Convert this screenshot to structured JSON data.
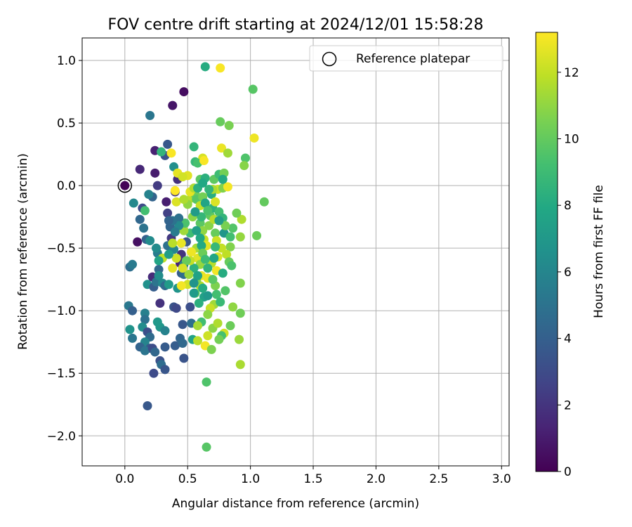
{
  "chart_data": {
    "type": "scatter",
    "title": "FOV centre drift starting at 2024/12/01 15:58:28",
    "xlabel": "Angular distance from reference (arcmin)",
    "ylabel": "Rotation from reference (arcmin)",
    "xlim": [
      -0.34,
      3.06
    ],
    "ylim": [
      -2.24,
      1.18
    ],
    "x_ticks": [
      0.0,
      0.5,
      1.0,
      1.5,
      2.0,
      2.5,
      3.0
    ],
    "x_tick_labels": [
      "0.0",
      "0.5",
      "1.0",
      "1.5",
      "2.0",
      "2.5",
      "3.0"
    ],
    "y_ticks": [
      1.0,
      0.5,
      0.0,
      -0.5,
      -1.0,
      -1.5,
      -2.0
    ],
    "y_tick_labels": [
      "1.0",
      "0.5",
      "0.0",
      "−0.5",
      "−1.0",
      "−1.5",
      "−2.0"
    ],
    "grid": true,
    "legend": {
      "placement": "top-right",
      "entries": [
        "Reference platepar"
      ]
    },
    "reference_point": {
      "x": 0.0,
      "y": 0.0,
      "label": "Reference platepar"
    },
    "colorbar": {
      "label": "Hours from first FF file",
      "colormap": "viridis",
      "range": [
        0,
        13.2
      ],
      "ticks": [
        0,
        2,
        4,
        6,
        8,
        10,
        12
      ],
      "tick_labels": [
        "0",
        "2",
        "4",
        "6",
        "8",
        "10",
        "12"
      ]
    },
    "points": [
      [
        0.0,
        0.0,
        0.1
      ],
      [
        0.47,
        0.75,
        0.5
      ],
      [
        0.38,
        0.64,
        0.8
      ],
      [
        0.12,
        0.13,
        1.5
      ],
      [
        0.24,
        0.28,
        1.2
      ],
      [
        0.24,
        0.1,
        1.0
      ],
      [
        0.1,
        -0.45,
        0.6
      ],
      [
        0.26,
        0.0,
        2.3
      ],
      [
        0.33,
        -0.13,
        1.1
      ],
      [
        0.22,
        -0.73,
        1.6
      ],
      [
        0.28,
        -0.94,
        1.9
      ],
      [
        0.44,
        -0.62,
        1.3
      ],
      [
        0.45,
        -0.55,
        2.0
      ],
      [
        0.37,
        -0.42,
        2.2
      ],
      [
        0.42,
        0.05,
        1.8
      ],
      [
        0.4,
        -0.05,
        2.1
      ],
      [
        0.34,
        -0.22,
        2.5
      ],
      [
        0.2,
        0.56,
        5.2
      ],
      [
        0.34,
        0.33,
        3.6
      ],
      [
        0.32,
        0.24,
        3.3
      ],
      [
        0.39,
        0.15,
        6.5
      ],
      [
        0.14,
        -0.18,
        3.0
      ],
      [
        0.22,
        -0.09,
        4.2
      ],
      [
        0.19,
        -0.07,
        5.8
      ],
      [
        0.12,
        -0.27,
        4.4
      ],
      [
        0.07,
        -0.14,
        6.1
      ],
      [
        0.04,
        -0.65,
        4.8
      ],
      [
        0.06,
        -0.63,
        5.4
      ],
      [
        0.17,
        -0.43,
        4.1
      ],
      [
        0.15,
        -0.34,
        5.0
      ],
      [
        0.2,
        -0.44,
        6.3
      ],
      [
        0.26,
        -0.54,
        5.5
      ],
      [
        0.27,
        -0.67,
        4.5
      ],
      [
        0.18,
        -0.79,
        6.6
      ],
      [
        0.23,
        -0.81,
        3.9
      ],
      [
        0.25,
        -0.77,
        5.1
      ],
      [
        0.3,
        -0.78,
        6.2
      ],
      [
        0.32,
        -0.8,
        4.6
      ],
      [
        0.34,
        -0.48,
        4.9
      ],
      [
        0.36,
        -0.33,
        4.3
      ],
      [
        0.39,
        -0.51,
        6.0
      ],
      [
        0.35,
        -0.79,
        7.2
      ],
      [
        0.39,
        -0.97,
        3.4
      ],
      [
        0.45,
        -0.7,
        3.8
      ],
      [
        0.42,
        -0.82,
        6.8
      ],
      [
        0.47,
        -0.63,
        5.6
      ],
      [
        0.47,
        -0.71,
        4.7
      ],
      [
        0.49,
        -0.45,
        3.5
      ],
      [
        0.03,
        -0.96,
        5.3
      ],
      [
        0.06,
        -1.0,
        4.0
      ],
      [
        0.16,
        -1.02,
        5.7
      ],
      [
        0.16,
        -1.07,
        4.9
      ],
      [
        0.14,
        -1.13,
        6.4
      ],
      [
        0.18,
        -1.17,
        3.2
      ],
      [
        0.2,
        -1.21,
        4.6
      ],
      [
        0.16,
        -1.25,
        5.9
      ],
      [
        0.2,
        -1.3,
        3.7
      ],
      [
        0.12,
        -1.29,
        4.2
      ],
      [
        0.06,
        -1.22,
        5.2
      ],
      [
        0.04,
        -1.15,
        6.7
      ],
      [
        0.16,
        -1.32,
        5.1
      ],
      [
        0.22,
        -1.3,
        3.1
      ],
      [
        0.24,
        -1.33,
        4.4
      ],
      [
        0.28,
        -1.13,
        6.9
      ],
      [
        0.26,
        -1.09,
        7.0
      ],
      [
        0.32,
        -1.16,
        5.8
      ],
      [
        0.32,
        -1.29,
        3.8
      ],
      [
        0.28,
        -1.4,
        3.3
      ],
      [
        0.29,
        -1.43,
        4.7
      ],
      [
        0.32,
        -1.47,
        3.5
      ],
      [
        0.23,
        -1.5,
        3.0
      ],
      [
        0.18,
        -1.76,
        3.6
      ],
      [
        0.4,
        -1.28,
        3.9
      ],
      [
        0.44,
        -1.22,
        4.3
      ],
      [
        0.46,
        -1.11,
        3.6
      ],
      [
        0.41,
        -0.98,
        2.9
      ],
      [
        0.47,
        -1.38,
        3.4
      ],
      [
        0.46,
        -1.26,
        4.5
      ],
      [
        0.52,
        -0.97,
        3.2
      ],
      [
        0.53,
        -1.1,
        4.8
      ],
      [
        0.54,
        -1.23,
        7.6
      ],
      [
        0.38,
        -0.66,
        12.7
      ],
      [
        0.43,
        -0.29,
        11.4
      ],
      [
        0.52,
        -0.38,
        9.1
      ],
      [
        0.5,
        -0.79,
        12.3
      ],
      [
        0.45,
        -0.8,
        13.0
      ],
      [
        0.54,
        -0.25,
        10.9
      ],
      [
        0.53,
        -0.1,
        11.8
      ],
      [
        0.5,
        0.08,
        12.6
      ],
      [
        0.56,
        -0.07,
        10.2
      ],
      [
        0.6,
        0.05,
        9.8
      ],
      [
        0.62,
        0.22,
        12.4
      ],
      [
        0.56,
        0.19,
        8.8
      ],
      [
        0.58,
        0.18,
        9.3
      ],
      [
        0.55,
        0.31,
        8.6
      ],
      [
        0.63,
        0.2,
        13.1
      ],
      [
        0.64,
        0.06,
        8.3
      ],
      [
        0.68,
        -0.05,
        10.6
      ],
      [
        0.71,
        0.05,
        9.9
      ],
      [
        0.75,
        0.09,
        9.0
      ],
      [
        0.79,
        0.1,
        10.4
      ],
      [
        0.74,
        -0.03,
        12.2
      ],
      [
        0.78,
        -0.02,
        10.7
      ],
      [
        0.82,
        -0.01,
        13.0
      ],
      [
        0.77,
        0.3,
        12.8
      ],
      [
        0.82,
        0.26,
        11.3
      ],
      [
        0.76,
        0.51,
        10.1
      ],
      [
        0.83,
        0.48,
        10.5
      ],
      [
        0.64,
        0.95,
        8.1
      ],
      [
        0.76,
        0.94,
        13.1
      ],
      [
        1.02,
        0.77,
        9.7
      ],
      [
        1.03,
        0.38,
        12.9
      ],
      [
        0.96,
        0.22,
        9.5
      ],
      [
        0.95,
        0.16,
        10.8
      ],
      [
        1.11,
        -0.13,
        10.0
      ],
      [
        1.05,
        -0.4,
        10.2
      ],
      [
        0.92,
        -0.41,
        11.1
      ],
      [
        0.93,
        -0.27,
        11.6
      ],
      [
        0.89,
        -0.22,
        10.3
      ],
      [
        0.86,
        -0.34,
        9.6
      ],
      [
        0.84,
        -0.49,
        10.7
      ],
      [
        0.81,
        -0.55,
        11.9
      ],
      [
        0.83,
        -0.61,
        10.1
      ],
      [
        0.85,
        -0.64,
        9.4
      ],
      [
        0.77,
        -0.5,
        12.0
      ],
      [
        0.74,
        -0.57,
        12.5
      ],
      [
        0.73,
        -0.68,
        13.0
      ],
      [
        0.69,
        -0.62,
        11.7
      ],
      [
        0.66,
        -0.74,
        12.9
      ],
      [
        0.72,
        -0.8,
        10.6
      ],
      [
        0.73,
        -0.87,
        9.2
      ],
      [
        0.71,
        -0.95,
        11.3
      ],
      [
        0.76,
        -0.93,
        8.9
      ],
      [
        0.68,
        -0.98,
        12.1
      ],
      [
        0.66,
        -1.03,
        10.9
      ],
      [
        0.61,
        -1.09,
        9.1
      ],
      [
        0.58,
        -1.12,
        11.4
      ],
      [
        0.58,
        -1.24,
        11.8
      ],
      [
        0.64,
        -1.28,
        13.0
      ],
      [
        0.66,
        -1.2,
        12.2
      ],
      [
        0.69,
        -1.31,
        10.6
      ],
      [
        0.7,
        -1.14,
        10.9
      ],
      [
        0.74,
        -1.1,
        11.6
      ],
      [
        0.79,
        -1.18,
        12.3
      ],
      [
        0.77,
        -1.2,
        9.3
      ],
      [
        0.75,
        -1.23,
        10.4
      ],
      [
        0.84,
        -1.12,
        10.2
      ],
      [
        0.86,
        -0.97,
        11.0
      ],
      [
        0.92,
        -1.02,
        10.3
      ],
      [
        0.91,
        -1.23,
        11.2
      ],
      [
        0.92,
        -1.43,
        11.5
      ],
      [
        0.92,
        -0.78,
        10.7
      ],
      [
        0.65,
        -1.57,
        9.5
      ],
      [
        0.65,
        -2.09,
        9.7
      ],
      [
        0.6,
        -0.3,
        9.8
      ],
      [
        0.61,
        -0.25,
        8.7
      ],
      [
        0.62,
        -0.36,
        11.0
      ],
      [
        0.63,
        -0.43,
        12.1
      ],
      [
        0.65,
        -0.48,
        12.7
      ],
      [
        0.67,
        -0.32,
        10.8
      ],
      [
        0.68,
        -0.24,
        9.9
      ],
      [
        0.7,
        -0.18,
        8.5
      ],
      [
        0.71,
        -0.27,
        11.7
      ],
      [
        0.72,
        -0.38,
        10.1
      ],
      [
        0.73,
        -0.44,
        12.2
      ],
      [
        0.75,
        -0.21,
        9.2
      ],
      [
        0.78,
        -0.26,
        8.6
      ],
      [
        0.79,
        -0.38,
        6.9
      ],
      [
        0.8,
        -0.32,
        10.5
      ],
      [
        0.57,
        -0.5,
        11.4
      ],
      [
        0.58,
        -0.58,
        12.6
      ],
      [
        0.6,
        -0.63,
        11.1
      ],
      [
        0.61,
        -0.72,
        12.8
      ],
      [
        0.6,
        -0.8,
        11.7
      ],
      [
        0.56,
        -0.86,
        9.9
      ],
      [
        0.57,
        -0.76,
        10.7
      ],
      [
        0.55,
        -0.66,
        8.4
      ],
      [
        0.53,
        -0.53,
        12.9
      ],
      [
        0.52,
        -0.6,
        12.0
      ],
      [
        0.51,
        -0.71,
        11.2
      ],
      [
        0.49,
        -0.6,
        10.1
      ],
      [
        0.46,
        -0.66,
        12.4
      ],
      [
        0.45,
        -0.46,
        12.8
      ],
      [
        0.47,
        -0.36,
        11.3
      ],
      [
        0.48,
        -0.3,
        9.4
      ],
      [
        0.5,
        -0.15,
        11.0
      ],
      [
        0.52,
        -0.05,
        12.7
      ],
      [
        0.55,
        -0.02,
        11.6
      ],
      [
        0.57,
        -0.11,
        9.7
      ],
      [
        0.6,
        -0.16,
        12.0
      ],
      [
        0.62,
        -0.09,
        10.4
      ],
      [
        0.64,
        -0.14,
        7.7
      ],
      [
        0.66,
        -0.2,
        9.4
      ],
      [
        0.69,
        -0.07,
        8.2
      ],
      [
        0.7,
        -0.03,
        11.5
      ],
      [
        0.72,
        -0.13,
        12.5
      ],
      [
        0.6,
        -0.42,
        7.9
      ],
      [
        0.61,
        -0.48,
        8.0
      ],
      [
        0.62,
        -0.54,
        10.2
      ],
      [
        0.64,
        -0.59,
        9.0
      ],
      [
        0.66,
        -0.66,
        8.5
      ],
      [
        0.62,
        -0.82,
        8.1
      ],
      [
        0.63,
        -0.89,
        7.5
      ],
      [
        0.59,
        -0.94,
        8.3
      ],
      [
        0.55,
        -0.86,
        7.1
      ],
      [
        0.58,
        -0.72,
        7.6
      ],
      [
        0.55,
        -0.78,
        6.7
      ],
      [
        0.43,
        -0.26,
        4.9
      ],
      [
        0.43,
        -0.32,
        6.1
      ],
      [
        0.4,
        -0.37,
        5.5
      ],
      [
        0.38,
        -0.28,
        5.0
      ],
      [
        0.35,
        -0.28,
        4.2
      ],
      [
        0.3,
        -0.58,
        11.9
      ],
      [
        0.25,
        -0.5,
        6.3
      ],
      [
        0.27,
        -0.6,
        7.7
      ],
      [
        0.27,
        -0.72,
        6.4
      ],
      [
        0.16,
        -0.2,
        9.2
      ],
      [
        0.29,
        0.27,
        8.6
      ],
      [
        0.37,
        0.26,
        13.1
      ],
      [
        0.42,
        0.1,
        12.7
      ],
      [
        0.46,
        0.07,
        12.3
      ],
      [
        0.4,
        -0.04,
        13.2
      ],
      [
        0.41,
        -0.13,
        12.5
      ],
      [
        0.47,
        -0.11,
        11.6
      ],
      [
        0.38,
        -0.46,
        11.8
      ],
      [
        0.41,
        -0.58,
        12.2
      ],
      [
        0.35,
        -0.55,
        7.3
      ],
      [
        0.84,
        -0.41,
        9.2
      ],
      [
        0.78,
        -0.7,
        8.1
      ],
      [
        0.8,
        -0.84,
        9.6
      ],
      [
        0.71,
        -0.58,
        7.8
      ],
      [
        0.66,
        -0.88,
        7.0
      ],
      [
        0.7,
        -0.75,
        9.8
      ],
      [
        0.72,
        -0.49,
        8.8
      ],
      [
        0.57,
        -0.36,
        7.4
      ],
      [
        0.56,
        -0.21,
        7.2
      ],
      [
        0.58,
        -0.02,
        8.3
      ],
      [
        0.62,
        0.02,
        7.9
      ],
      [
        0.67,
        -0.03,
        8.6
      ],
      [
        0.78,
        0.05,
        8.0
      ],
      [
        0.75,
        -0.28,
        7.3
      ]
    ]
  }
}
